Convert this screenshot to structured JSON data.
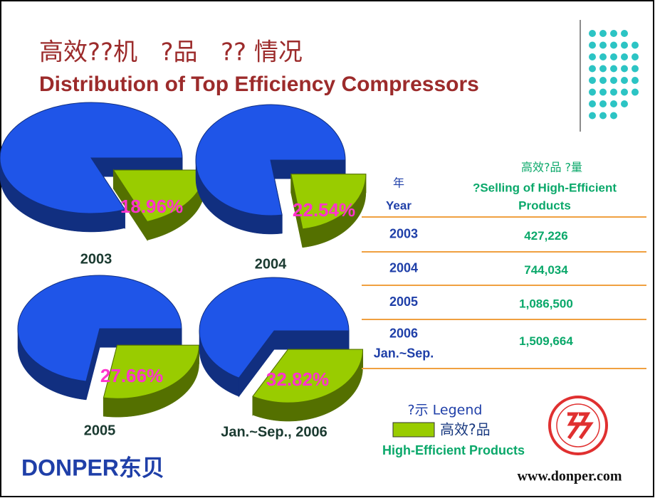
{
  "title_cn": "高效??机   ?品   ?? 情况",
  "title_en": "Distribution of Top Efficiency Compressors",
  "chart_data": [
    {
      "type": "pie",
      "title": "2003",
      "values": [
        81.04,
        18.96
      ],
      "value_labels": [
        null,
        "18.96%"
      ],
      "colors": [
        "#1f55e8",
        "#99cc00"
      ]
    },
    {
      "type": "pie",
      "title": "2004",
      "values": [
        77.46,
        22.54
      ],
      "value_labels": [
        null,
        "22.54%"
      ],
      "colors": [
        "#1f55e8",
        "#99cc00"
      ]
    },
    {
      "type": "pie",
      "title": "2005",
      "values": [
        72.34,
        27.66
      ],
      "value_labels": [
        null,
        "27.66%"
      ],
      "colors": [
        "#1f55e8",
        "#99cc00"
      ]
    },
    {
      "type": "pie",
      "title": "Jan.~Sep., 2006",
      "values": [
        67.18,
        32.82
      ],
      "value_labels": [
        null,
        "32.82%"
      ],
      "colors": [
        "#1f55e8",
        "#99cc00"
      ]
    }
  ],
  "table": {
    "header": {
      "year": [
        "年",
        "Year"
      ],
      "amount": [
        "高效?品 ?量",
        "?Selling of High-Efficient",
        "Products"
      ]
    },
    "rows": [
      {
        "year": [
          "2003"
        ],
        "amount": "427,226"
      },
      {
        "year": [
          "2004"
        ],
        "amount": "744,034"
      },
      {
        "year": [
          "2005"
        ],
        "amount": "1,086,500"
      },
      {
        "year": [
          "2006",
          "Jan.~Sep."
        ],
        "amount": "1,509,664"
      }
    ]
  },
  "legend": {
    "title": "?示 Legend",
    "label_cn": "高效?品",
    "label_en": "High-Efficient Products"
  },
  "logo": "DONPER东贝",
  "url": "www.donper.com"
}
